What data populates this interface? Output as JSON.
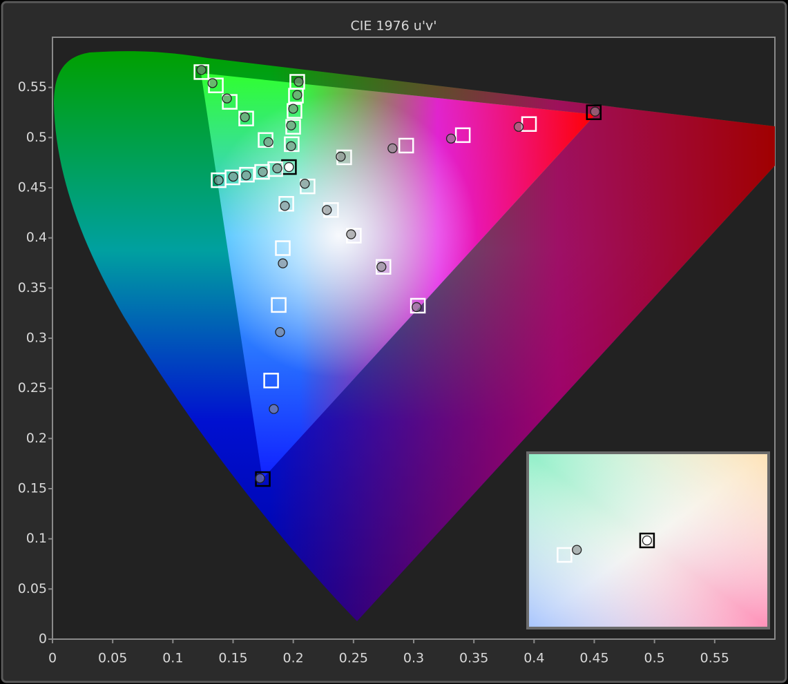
{
  "chart_data": {
    "type": "scatter",
    "title": "CIE 1976 u'v'",
    "xlim": [
      0,
      0.6
    ],
    "ylim": [
      0,
      0.6
    ],
    "xticks": [
      0,
      0.05,
      0.1,
      0.15,
      0.2,
      0.25,
      0.3,
      0.35,
      0.4,
      0.45,
      0.5,
      0.55
    ],
    "yticks": [
      0,
      0.05,
      0.1,
      0.15,
      0.2,
      0.25,
      0.3,
      0.35,
      0.4,
      0.45,
      0.5,
      0.55
    ],
    "inset_xlim": [
      0.1801,
      0.213
    ],
    "inset_ylim": [
      0.4587,
      0.4825
    ],
    "series": [
      {
        "marker": "square",
        "x": [
          0.1237,
          0.1357,
          0.1472,
          0.1609,
          0.177,
          0.2033,
          0.2022,
          0.201,
          0.1999,
          0.1987,
          0.1964,
          0.138,
          0.1495,
          0.1615,
          0.1741,
          0.185,
          0.2423,
          0.2938,
          0.3408,
          0.3958,
          0.4496,
          0.2119,
          0.2314,
          0.2503,
          0.2749,
          0.3035,
          0.1942,
          0.1913,
          0.1879,
          0.1816,
          0.1747
        ],
        "values": [
          0.5653,
          0.552,
          0.5356,
          0.519,
          0.4976,
          0.5556,
          0.5418,
          0.5266,
          0.5107,
          0.4934,
          0.4706,
          0.4575,
          0.4603,
          0.463,
          0.4658,
          0.4686,
          0.4803,
          0.492,
          0.5024,
          0.5135,
          0.5252,
          0.4513,
          0.4278,
          0.4022,
          0.3711,
          0.3324,
          0.434,
          0.3898,
          0.3331,
          0.2578,
          0.1596
        ],
        "colors": [
          "#ffffff",
          "#ffffff",
          "#ffffff",
          "#ffffff",
          "#ffffff",
          "#ffffff",
          "#ffffff",
          "#ffffff",
          "#ffffff",
          "#ffffff",
          "#000000",
          "#ffffff",
          "#ffffff",
          "#ffffff",
          "#ffffff",
          "#ffffff",
          "#ffffff",
          "#ffffff",
          "#ffffff",
          "#ffffff",
          "#000000",
          "#ffffff",
          "#ffffff",
          "#ffffff",
          "#ffffff",
          "#ffffff",
          "#ffffff",
          "#ffffff",
          "#ffffff",
          "#ffffff",
          "#000000"
        ]
      },
      {
        "marker": "circle",
        "x": [
          0.1237,
          0.1329,
          0.1449,
          0.1598,
          0.1793,
          0.2045,
          0.2033,
          0.1999,
          0.1982,
          0.1982,
          0.1964,
          0.138,
          0.1501,
          0.1609,
          0.1747,
          0.1867,
          0.2394,
          0.2824,
          0.331,
          0.3872,
          0.4507,
          0.2096,
          0.2279,
          0.248,
          0.2732,
          0.3024,
          0.193,
          0.1913,
          0.189,
          0.1838,
          0.1724
        ],
        "values": [
          0.5674,
          0.5543,
          0.539,
          0.5204,
          0.4955,
          0.5556,
          0.5425,
          0.5287,
          0.5121,
          0.4914,
          0.4706,
          0.4575,
          0.461,
          0.4623,
          0.4658,
          0.4693,
          0.481,
          0.4893,
          0.499,
          0.5107,
          0.5259,
          0.454,
          0.4278,
          0.4036,
          0.3711,
          0.331,
          0.4319,
          0.3746,
          0.3061,
          0.2294,
          0.1603
        ],
        "colors": [
          "#8c8c8c",
          "#8c8c8c",
          "#8c8c8c",
          "#8c8c8c",
          "#8c8c8c",
          "#8c8c8c",
          "#8c8c8c",
          "#8c8c8c",
          "#8c8c8c",
          "#8c8c8c",
          "#ffffff",
          "#8c8c8c",
          "#8c8c8c",
          "#8c8c8c",
          "#8c8c8c",
          "#8c8c8c",
          "#8c8c8c",
          "#8c8c8c",
          "#8c8c8c",
          "#8c8c8c",
          "#8c8c8c",
          "#8c8c8c",
          "#8c8c8c",
          "#8c8c8c",
          "#8c8c8c",
          "#8c8c8c",
          "#8c8c8c",
          "#8c8c8c",
          "#8c8c8c",
          "#8c8c8c",
          "#8c8c8c"
        ]
      }
    ]
  }
}
